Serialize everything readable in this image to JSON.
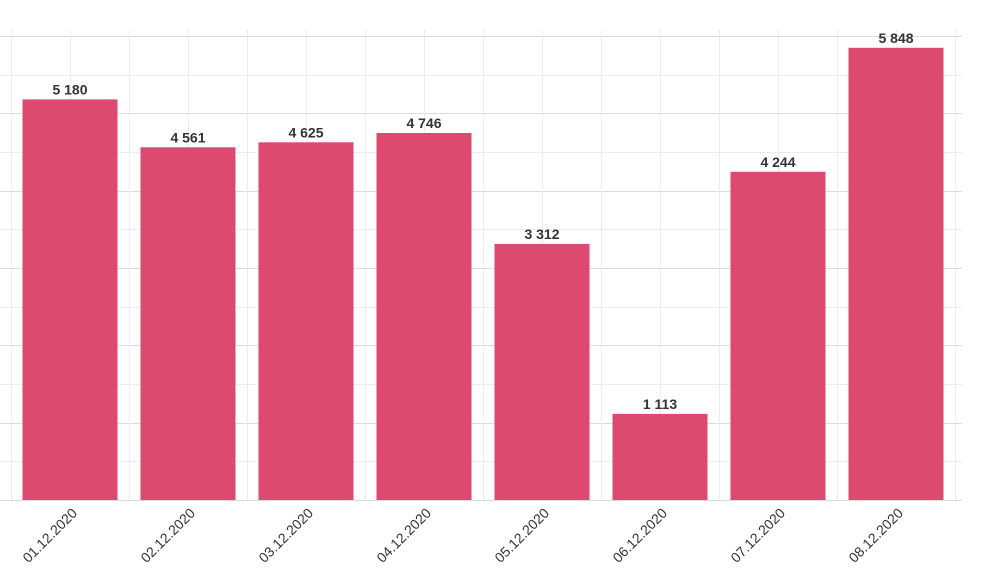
{
  "chart_data": {
    "type": "bar",
    "categories": [
      "01.12.2020",
      "02.12.2020",
      "03.12.2020",
      "04.12.2020",
      "05.12.2020",
      "06.12.2020",
      "07.12.2020",
      "08.12.2020"
    ],
    "values": [
      5180,
      4561,
      4625,
      4746,
      3312,
      1113,
      4244,
      5848
    ],
    "data_labels": [
      "5 180",
      "4 561",
      "4 625",
      "4 746",
      "3 312",
      "1 113",
      "4 244",
      "5 848"
    ],
    "title": "",
    "xlabel": "",
    "ylabel": "",
    "ylim": [
      0,
      6000
    ],
    "y_gridline_step": 500,
    "grid": true,
    "x_tick_rotation_deg": -45,
    "colors": {
      "bar": "#dc4a70",
      "label": "#333333",
      "grid": "#dcdcdc"
    }
  }
}
